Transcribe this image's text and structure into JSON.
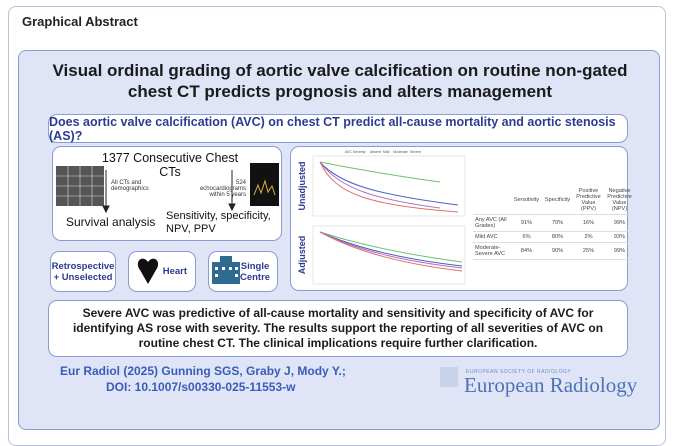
{
  "header": {
    "title": "Graphical Abstract"
  },
  "abstract": {
    "title": "Visual ordinal grading of aortic valve calcification on routine non-gated chest CT predicts prognosis and alters management",
    "question": "Does aortic valve calcification (AVC) on chest CT predict all-cause mortality and aortic stenosis (AS)?",
    "methods": {
      "cohort": "1377 Consecutive Chest CTs",
      "left_branch": "All CTs and demographics",
      "right_branch": "524 echocardiograms within 5 years",
      "left_outcome": "Survival analysis",
      "right_outcome": "Sensitivity, specificity, NPV, PPV"
    },
    "features": [
      "Retrospective + Unselected",
      "Heart",
      "Single Centre"
    ],
    "results": {
      "panels": [
        "Unadjusted",
        "Adjusted"
      ],
      "legend": [
        "AVC Severity",
        "Absent",
        "Mild",
        "Moderate",
        "Severe"
      ],
      "table": {
        "columns": [
          "Sensitivity",
          "Specificity",
          "Positive Predictive Value (PPV)",
          "Negative Predictive Value (NPV)"
        ],
        "rows": [
          [
            "Any AVC (All Grades)",
            "91%",
            "70%",
            "16%",
            "99%"
          ],
          [
            "Mild AVC",
            "6%",
            "80%",
            "2%",
            "93%"
          ],
          [
            "Moderate-Severe AVC",
            "84%",
            "90%",
            "25%",
            "99%"
          ]
        ]
      }
    },
    "conclusion": "Severe AVC was predictive of all-cause mortality and sensitivity and specificity of AVC for identifying AS rose with severity. The results support the reporting of all severities of AVC on routine chest CT. The clinical implications require further clarification.",
    "citation": [
      "Eur Radiol (2025) Gunning SGS, Graby J, Mody Y.;",
      "DOI: 10.1007/s00330-025-11553-w"
    ],
    "journal": {
      "society": "EUROPEAN SOCIETY OF RADIOLOGY",
      "name": "European Radiology"
    }
  }
}
